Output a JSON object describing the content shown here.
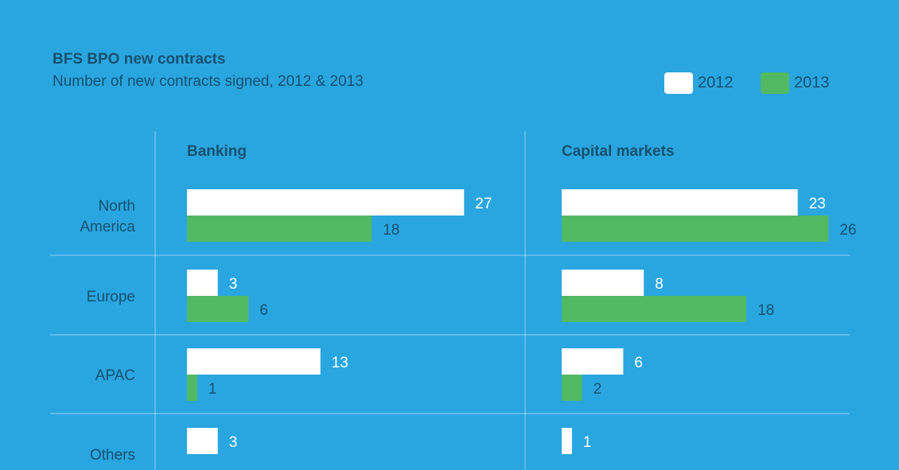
{
  "header": {
    "title": "BFS BPO new contracts",
    "subtitle": "Number of new contracts signed, 2012 & 2013"
  },
  "legend": [
    {
      "label": "2012",
      "color": "#ffffff"
    },
    {
      "label": "2013",
      "color": "#52b963"
    }
  ],
  "chart_data": {
    "type": "bar",
    "orientation": "horizontal",
    "title": "BFS BPO new contracts",
    "subtitle": "Number of new contracts signed, 2012 & 2013",
    "categories": [
      "North America",
      "Europe",
      "APAC",
      "Others"
    ],
    "panels": [
      {
        "name": "Banking",
        "series": [
          {
            "name": "2012",
            "values": [
              27,
              3,
              13,
              3
            ]
          },
          {
            "name": "2013",
            "values": [
              18,
              6,
              1,
              null
            ]
          }
        ]
      },
      {
        "name": "Capital markets",
        "series": [
          {
            "name": "2012",
            "values": [
              23,
              8,
              6,
              1
            ]
          },
          {
            "name": "2013",
            "values": [
              26,
              18,
              2,
              null
            ]
          }
        ]
      }
    ],
    "colors": {
      "2012": "#ffffff",
      "2013": "#52b963",
      "background": "#29a6e0",
      "text": "#17506f"
    },
    "legend_position": "top-right"
  }
}
